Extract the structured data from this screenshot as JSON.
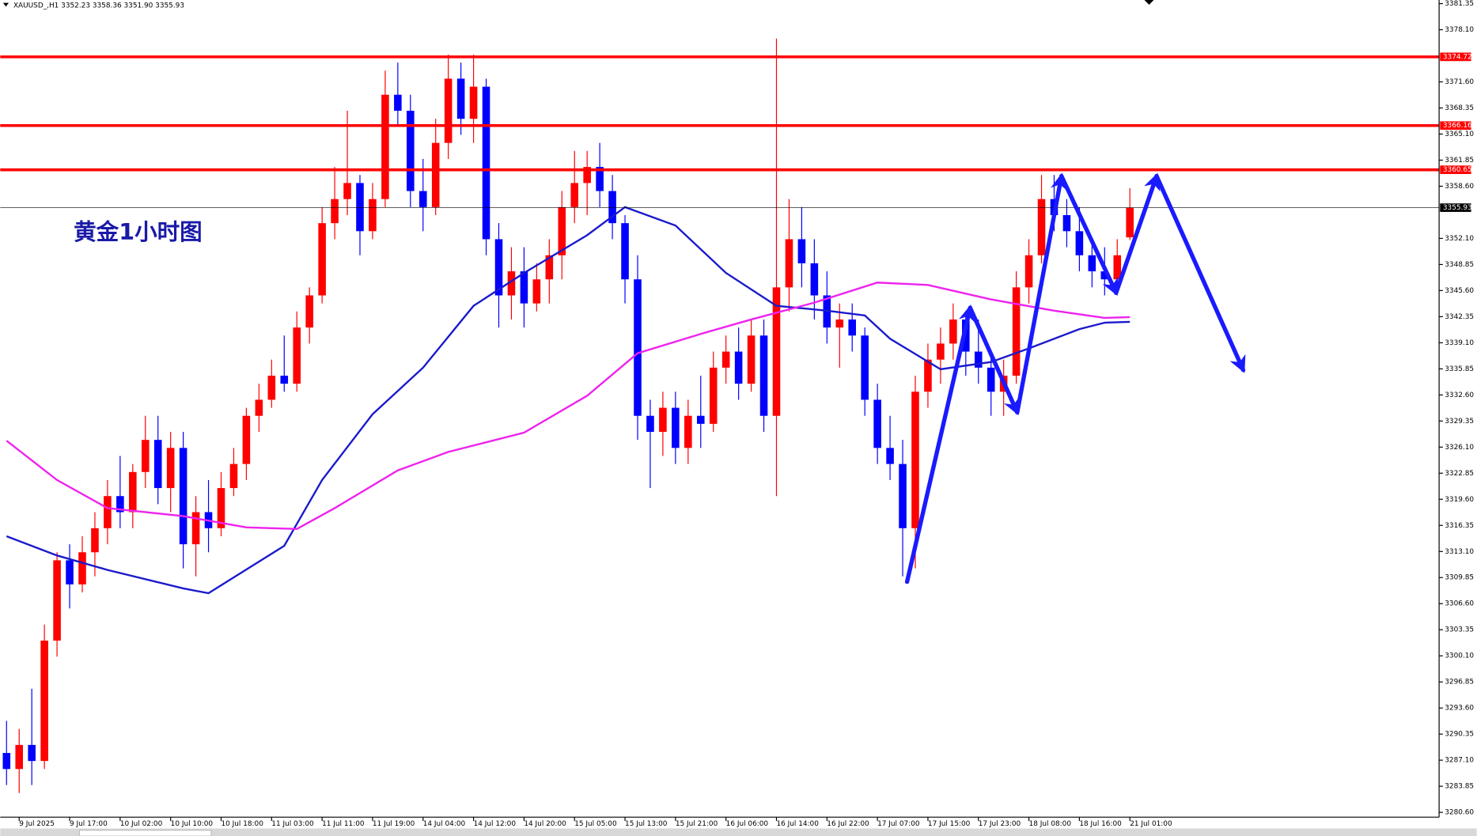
{
  "chart_data": {
    "type": "candlestick",
    "title": "XAUUSD_,H1  3352.23 3358.36 3351.90 3355.93",
    "annotation": "黄金1小时图",
    "up_color": "#ff0000",
    "down_color": "#0000ff",
    "open": [
      3288,
      3286,
      3289,
      3287,
      3302,
      3312,
      3309,
      3313,
      3316,
      3320,
      3318,
      3323,
      3327,
      3321,
      3326,
      3314,
      3318,
      3316,
      3321,
      3324,
      3330,
      3332,
      3335,
      3334,
      3341,
      3345,
      3354,
      3357,
      3359,
      3353,
      3357,
      3370,
      3368,
      3358,
      3356,
      3364,
      3372,
      3367,
      3371,
      3352,
      3345,
      3348,
      3344,
      3347,
      3350,
      3356,
      3359,
      3361,
      3358,
      3354,
      3347,
      3330,
      3328,
      3331,
      3326,
      3330,
      3329,
      3336,
      3338,
      3334,
      3340,
      3330,
      3346,
      3352,
      3349,
      3345,
      3341,
      3342,
      3340,
      3332,
      3326,
      3324,
      3316,
      3333,
      3337,
      3339,
      3342,
      3338,
      3336,
      3333,
      3335,
      3346,
      3350,
      3357,
      3355,
      3353,
      3350,
      3348,
      3347,
      3352.23
    ],
    "high": [
      3292,
      3291,
      3296,
      3304,
      3313,
      3314,
      3315,
      3318,
      3322,
      3325,
      3324,
      3330,
      3330,
      3328,
      3328,
      3320,
      3322,
      3323,
      3326,
      3331,
      3334,
      3337,
      3340,
      3343,
      3346,
      3356,
      3361,
      3368,
      3360,
      3359,
      3373,
      3374,
      3370,
      3362,
      3367,
      3375,
      3374,
      3375,
      3372,
      3354,
      3351,
      3351,
      3349,
      3352,
      3358,
      3363,
      3363,
      3364,
      3360,
      3355,
      3350,
      3332,
      3333,
      3333,
      3332,
      3335,
      3338,
      3340,
      3341,
      3342,
      3342,
      3377,
      3357,
      3356,
      3352,
      3348,
      3344,
      3344,
      3341,
      3334,
      3330,
      3327,
      3335,
      3339,
      3341,
      3344,
      3343,
      3342,
      3338,
      3337,
      3348,
      3352,
      3360,
      3360,
      3357,
      3356,
      3352,
      3351,
      3352,
      3358.36
    ],
    "low": [
      3284,
      3283,
      3284,
      3286,
      3300,
      3306,
      3308,
      3310,
      3314,
      3316,
      3316,
      3321,
      3319,
      3318,
      3311,
      3310,
      3313,
      3315,
      3320,
      3322,
      3328,
      3331,
      3333,
      3333,
      3339,
      3344,
      3352,
      3355,
      3350,
      3352,
      3356,
      3366,
      3356,
      3353,
      3355,
      3362,
      3365,
      3364,
      3350,
      3341,
      3342,
      3341,
      3343,
      3344,
      3347,
      3354,
      3355,
      3356,
      3352,
      3344,
      3327,
      3321,
      3325,
      3324,
      3324,
      3326,
      3328,
      3334,
      3332,
      3333,
      3328,
      3320,
      3343,
      3346,
      3342,
      3339,
      3336,
      3338,
      3330,
      3324,
      3322,
      3310,
      3311,
      3331,
      3334,
      3337,
      3335,
      3334,
      3330,
      3330,
      3334,
      3344,
      3349,
      3353,
      3351,
      3348,
      3346,
      3345,
      3346,
      3351.9
    ],
    "close": [
      3286,
      3289,
      3287,
      3302,
      3312,
      3309,
      3313,
      3316,
      3320,
      3318,
      3323,
      3327,
      3321,
      3326,
      3314,
      3318,
      3316,
      3321,
      3324,
      3330,
      3332,
      3335,
      3334,
      3341,
      3345,
      3354,
      3357,
      3359,
      3353,
      3357,
      3370,
      3368,
      3358,
      3356,
      3364,
      3372,
      3367,
      3371,
      3352,
      3345,
      3348,
      3344,
      3347,
      3350,
      3356,
      3359,
      3361,
      3358,
      3354,
      3347,
      3330,
      3328,
      3331,
      3326,
      3330,
      3329,
      3336,
      3338,
      3334,
      3340,
      3330,
      3346,
      3352,
      3349,
      3345,
      3341,
      3342,
      3340,
      3332,
      3326,
      3324,
      3316,
      3333,
      3337,
      3339,
      3342,
      3338,
      3336,
      3333,
      3335,
      3346,
      3350,
      3357,
      3355,
      3353,
      3350,
      3348,
      3347,
      3350,
      3355.93
    ],
    "series": [
      {
        "color": "#1a1acc",
        "x": [
          0,
          4,
          8,
          14,
          16,
          22,
          25,
          29,
          33,
          37,
          41,
          46,
          49,
          53,
          57,
          61,
          65,
          68,
          70,
          74,
          78,
          81,
          85,
          87,
          89
        ],
        "values": [
          3315,
          3312.6,
          3310.8,
          3308.5,
          3307.9,
          3313.8,
          3322,
          3330.2,
          3336,
          3343.7,
          3347.8,
          3352.5,
          3356,
          3353.7,
          3347.8,
          3343.7,
          3343.1,
          3342.5,
          3339.6,
          3335.8,
          3336.7,
          3338.4,
          3340.8,
          3341.6,
          3341.7
        ]
      },
      {
        "color": "#ee22ee",
        "x": [
          0,
          4,
          8,
          14,
          19,
          23,
          26,
          31,
          35,
          41,
          46,
          50,
          55,
          59,
          64,
          69,
          73,
          78,
          83,
          87,
          89
        ],
        "values": [
          3326.9,
          3322,
          3318.5,
          3317.5,
          3316.1,
          3315.9,
          3318.5,
          3323.2,
          3325.5,
          3327.9,
          3332.5,
          3337.8,
          3340.2,
          3342,
          3344.1,
          3346.6,
          3346.3,
          3344.5,
          3343.1,
          3342.2,
          3342.3
        ]
      }
    ],
    "hlines": [
      {
        "value": 3374.72,
        "color": "#ff0000"
      },
      {
        "value": 3366.16,
        "color": "#ff0000"
      },
      {
        "value": 3360.65,
        "color": "#ff0000"
      }
    ],
    "price_line": 3355.93,
    "xlim": [
      -0.5,
      113.5
    ],
    "ylim": [
      3280.0,
      3381.8
    ],
    "xticks": [
      {
        "value": 1,
        "label": "9 Jul 2025"
      },
      {
        "value": 5,
        "label": "9 Jul 17:00"
      },
      {
        "value": 9,
        "label": "10 Jul 02:00"
      },
      {
        "value": 13,
        "label": "10 Jul 10:00"
      },
      {
        "value": 17,
        "label": "10 Jul 18:00"
      },
      {
        "value": 21,
        "label": "11 Jul 03:00"
      },
      {
        "value": 25,
        "label": "11 Jul 11:00"
      },
      {
        "value": 29,
        "label": "11 Jul 19:00"
      },
      {
        "value": 33,
        "label": "14 Jul 04:00"
      },
      {
        "value": 37,
        "label": "14 Jul 12:00"
      },
      {
        "value": 41,
        "label": "14 Jul 20:00"
      },
      {
        "value": 45,
        "label": "15 Jul 05:00"
      },
      {
        "value": 49,
        "label": "15 Jul 13:00"
      },
      {
        "value": 53,
        "label": "15 Jul 21:00"
      },
      {
        "value": 57,
        "label": "16 Jul 06:00"
      },
      {
        "value": 61,
        "label": "16 Jul 14:00"
      },
      {
        "value": 65,
        "label": "16 Jul 22:00"
      },
      {
        "value": 69,
        "label": "17 Jul 07:00"
      },
      {
        "value": 73,
        "label": "17 Jul 15:00"
      },
      {
        "value": 77,
        "label": "17 Jul 23:00"
      },
      {
        "value": 81,
        "label": "18 Jul 08:00"
      },
      {
        "value": 85,
        "label": "18 Jul 16:00"
      },
      {
        "value": 89,
        "label": "21 Jul 01:00"
      }
    ],
    "yticks": [
      3381.35,
      {
        "value": 3378.1,
        "label": "3378.10"
      },
      {
        "value": 3371.6,
        "label": "3371.60"
      },
      3368.35,
      {
        "value": 3365.1,
        "label": "3365.10"
      },
      3361.85,
      {
        "value": 3358.6,
        "label": "3358.60"
      },
      {
        "value": 3352.1,
        "label": "3352.10"
      },
      3348.85,
      {
        "value": 3345.6,
        "label": "3345.60"
      },
      3342.35,
      {
        "value": 3339.1,
        "label": "3339.10"
      },
      3335.85,
      {
        "value": 3332.6,
        "label": "3332.60"
      },
      3329.35,
      {
        "value": 3326.1,
        "label": "3326.10"
      },
      3322.85,
      {
        "value": 3319.6,
        "label": "3319.60"
      },
      3316.35,
      {
        "value": 3313.1,
        "label": "3313.10"
      },
      3309.85,
      {
        "value": 3306.6,
        "label": "3306.60"
      },
      3303.35,
      {
        "value": 3300.1,
        "label": "3300.10"
      },
      3296.85,
      {
        "value": 3293.6,
        "label": "3293.60"
      },
      3290.35,
      {
        "value": 3287.1,
        "label": "3287.10"
      },
      3283.85,
      {
        "value": 3280.6,
        "label": "3280.60"
      }
    ]
  }
}
